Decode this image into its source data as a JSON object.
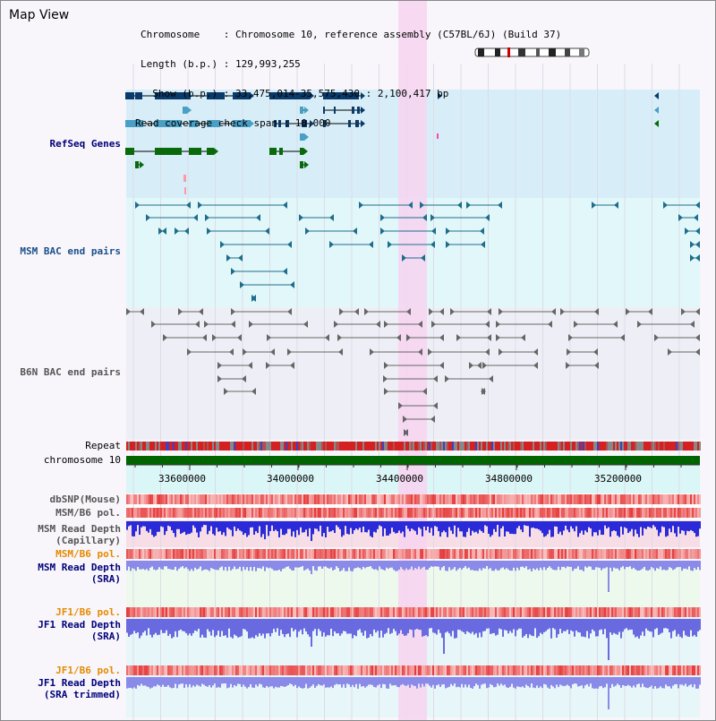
{
  "title": "Map View",
  "header": {
    "chromosome_line": "Chromosome    : Chromosome 10, reference assembly (C57BL/6J) (Build 37)",
    "length_line": "Length (b.p.) : 129,993,255",
    "show_line": "  Show (b.p.) : 33,475,014-35,575,430 : 2,100,417 bp",
    "coverage_line": "Read coverage check span : 10,000"
  },
  "tracks": {
    "refseq": "RefSeq Genes",
    "msm_bac": "MSM BAC end pairs",
    "b6n_bac": "B6N BAC end pairs",
    "repeat": "Repeat",
    "chromosome": "chromosome 10",
    "dbsnp": "dbSNP(Mouse)",
    "msm_b6_pol_1": "MSM/B6 pol.",
    "msm_depth_cap": "MSM Read Depth\n(Capillary)",
    "msm_b6_pol_2": "MSM/B6 pol.",
    "msm_depth_sra": "MSM Read Depth\n(SRA)",
    "jf1_b6_pol_1": "JF1/B6 pol.",
    "jf1_depth_sra": "JF1 Read Depth\n(SRA)",
    "jf1_b6_pol_2": "JF1/B6 pol.",
    "jf1_depth_trim": "JF1 Read Depth\n(SRA trimmed)"
  },
  "axis_ticks": [
    "33600000",
    "34000000",
    "34400000",
    "34800000",
    "35200000"
  ],
  "colors": {
    "navy": "#00007a",
    "msm_label": "#1a4f8a",
    "b6n_label": "#555555",
    "orange": "#e68a00",
    "highlight": "#f7d4f0",
    "gene_dark": "#0a3a6a",
    "gene_light": "#4a9fc4",
    "gene_green": "#0a6a0a",
    "chromosome_bar": "#006400"
  }
}
